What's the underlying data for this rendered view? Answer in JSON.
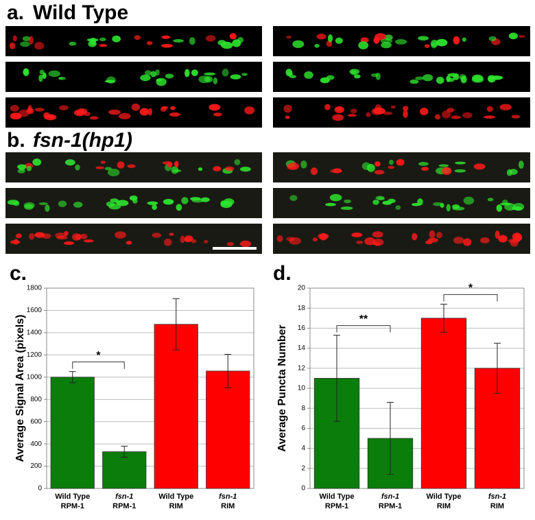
{
  "panels": {
    "a": {
      "label": "a.",
      "title": "Wild Type"
    },
    "b": {
      "label": "b.",
      "title": "fsn-1(hp1)"
    }
  },
  "chart_data": [
    {
      "type": "bar",
      "panel_label": "c.",
      "y_label": "Average Signal Area (pixels)",
      "categories": [
        [
          "Wild Type",
          "RPM-1"
        ],
        [
          "fsn-1",
          "RPM-1"
        ],
        [
          "Wild Type",
          "RIM"
        ],
        [
          "fsn-1",
          "RIM"
        ]
      ],
      "values": [
        1000,
        330,
        1475,
        1055
      ],
      "errors": [
        50,
        50,
        230,
        150
      ],
      "colors": [
        "#0b7d0b",
        "#0b7d0b",
        "#ff0000",
        "#ff0000"
      ],
      "ylim": [
        0,
        1800
      ],
      "yticks": [
        0,
        200,
        400,
        600,
        800,
        1000,
        1200,
        1400,
        1600,
        1800
      ],
      "grid": true,
      "annotations": [
        {
          "text": "*",
          "from": 0,
          "to": 1
        }
      ]
    },
    {
      "type": "bar",
      "panel_label": "d.",
      "y_label": "Average Puncta Number",
      "categories": [
        [
          "Wild Type",
          "RPM-1"
        ],
        [
          "fsn-1",
          "RPM-1"
        ],
        [
          "Wild Type",
          "RIM"
        ],
        [
          "fsn-1",
          "RIM"
        ]
      ],
      "values": [
        11,
        5,
        17,
        12
      ],
      "errors": [
        4.3,
        3.6,
        1.4,
        2.5
      ],
      "colors": [
        "#0b7d0b",
        "#0b7d0b",
        "#ff0000",
        "#ff0000"
      ],
      "ylim": [
        0,
        20
      ],
      "yticks": [
        0,
        2,
        4,
        6,
        8,
        10,
        12,
        14,
        16,
        18,
        20
      ],
      "grid": true,
      "annotations": [
        {
          "text": "**",
          "from": 0,
          "to": 1
        },
        {
          "text": "*",
          "from": 2,
          "to": 3
        }
      ]
    }
  ]
}
